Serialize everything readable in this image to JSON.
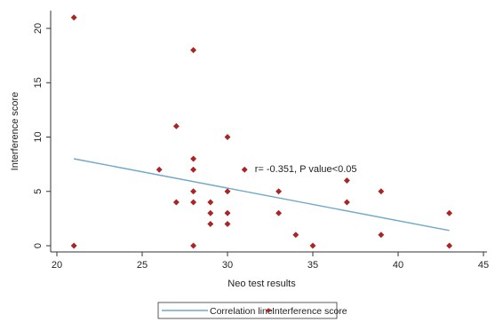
{
  "chart_data": {
    "type": "scatter",
    "xlabel": "Neo test results",
    "ylabel": "Interference score",
    "xlim": [
      20,
      45
    ],
    "ylim": [
      0,
      21
    ],
    "x_ticks": [
      20,
      25,
      30,
      35,
      40,
      45
    ],
    "y_ticks": [
      0,
      5,
      10,
      15,
      20
    ],
    "x_tick_labels": [
      "20",
      "25",
      "30",
      "35",
      "40",
      "45"
    ],
    "y_tick_labels": [
      "0",
      "5",
      "10",
      "15",
      "20"
    ],
    "grid": false,
    "annotation": "r= -0.351, P value<0.05",
    "annotation_position": {
      "x": 31.6,
      "y": 7.1
    },
    "legend": {
      "placement": "bottom-center",
      "entries": [
        "Correlation line",
        "Interference score"
      ]
    },
    "series": [
      {
        "name": "Interference score",
        "marker": "diamond",
        "color": "#b22222",
        "points": [
          {
            "x": 21,
            "y": 21
          },
          {
            "x": 21,
            "y": 0
          },
          {
            "x": 26,
            "y": 7
          },
          {
            "x": 27,
            "y": 11
          },
          {
            "x": 27,
            "y": 4
          },
          {
            "x": 28,
            "y": 18
          },
          {
            "x": 28,
            "y": 8
          },
          {
            "x": 28,
            "y": 7
          },
          {
            "x": 28,
            "y": 5
          },
          {
            "x": 28,
            "y": 4
          },
          {
            "x": 28,
            "y": 0
          },
          {
            "x": 29,
            "y": 4
          },
          {
            "x": 29,
            "y": 3
          },
          {
            "x": 29,
            "y": 2
          },
          {
            "x": 30,
            "y": 10
          },
          {
            "x": 30,
            "y": 5
          },
          {
            "x": 30,
            "y": 3
          },
          {
            "x": 30,
            "y": 2
          },
          {
            "x": 31,
            "y": 7
          },
          {
            "x": 33,
            "y": 5
          },
          {
            "x": 33,
            "y": 3
          },
          {
            "x": 34,
            "y": 1
          },
          {
            "x": 35,
            "y": 0
          },
          {
            "x": 37,
            "y": 6
          },
          {
            "x": 37,
            "y": 4
          },
          {
            "x": 39,
            "y": 5
          },
          {
            "x": 39,
            "y": 1
          },
          {
            "x": 43,
            "y": 3
          },
          {
            "x": 43,
            "y": 0
          }
        ]
      },
      {
        "name": "Correlation line",
        "type": "line",
        "color": "#6fa8c8",
        "points": [
          {
            "x": 21,
            "y": 8.0
          },
          {
            "x": 43,
            "y": 1.4
          }
        ]
      }
    ]
  }
}
